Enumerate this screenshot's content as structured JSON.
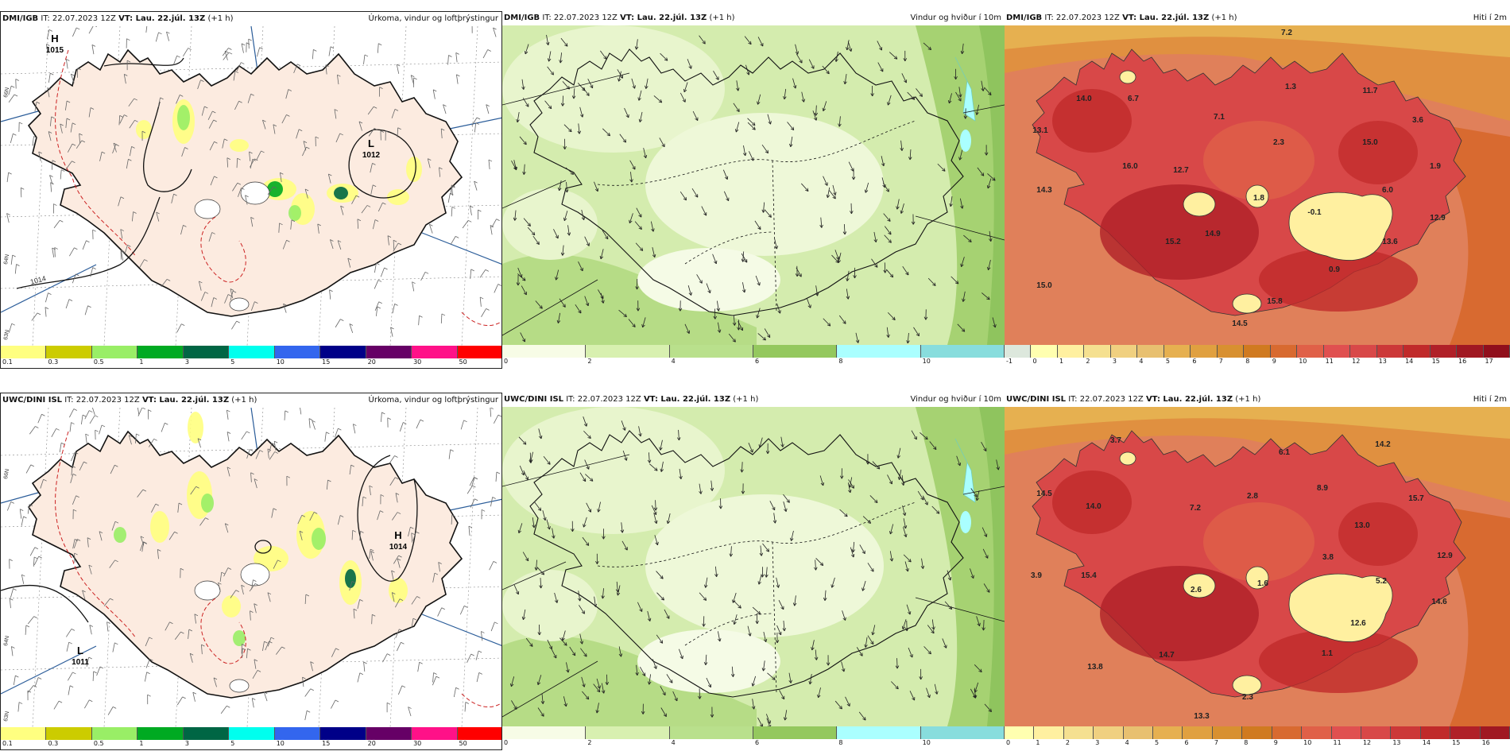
{
  "panels": [
    {
      "id": "p1",
      "model": "DMI/IGB",
      "it": "IT: 22.07.2023 12Z",
      "vt": "VT: Lau. 22.júl. 13Z",
      "lead": "(+1 h)",
      "subject": "Úrkoma, vindur og loftþrýstingur",
      "type": "precip",
      "pressure_centers": [
        {
          "letter": "H",
          "value": "1015"
        },
        {
          "letter": "L",
          "value": "1012"
        }
      ],
      "isobar_labels": [
        "1014"
      ],
      "lat_labels": [
        "66N",
        "64N",
        "63N"
      ],
      "colorbar": {
        "labels": [
          "0.1",
          "0.3",
          "0.5",
          "1",
          "3",
          "5",
          "10",
          "15",
          "20",
          "30",
          "50"
        ],
        "colors": [
          "#ffff80",
          "#cccc00",
          "#99ee66",
          "#00aa22",
          "#006644",
          "#00ffee",
          "#3366ee",
          "#000088",
          "#660066",
          "#ff1188",
          "#ff0000"
        ]
      }
    },
    {
      "id": "p2",
      "model": "DMI/IGB",
      "it": "IT: 22.07.2023 12Z",
      "vt": "VT: Lau. 22.júl. 13Z",
      "lead": "(+1 h)",
      "subject": "Vindur og hviður í 10m",
      "type": "wind",
      "colorbar": {
        "labels": [
          "0",
          "2",
          "4",
          "6",
          "8",
          "10"
        ],
        "colors": [
          "#f7fce6",
          "#d8f0b0",
          "#b9e08c",
          "#94c85e",
          "#aaffff",
          "#88dddd"
        ]
      }
    },
    {
      "id": "p3",
      "model": "DMI/IGB",
      "it": "IT: 22.07.2023 12Z",
      "vt": "VT: Lau. 22.júl. 13Z",
      "lead": "(+1 h)",
      "subject": "Hiti í 2m",
      "type": "temp",
      "temp_values": [
        "7.2",
        "14.0",
        "6.7",
        "1.3",
        "11.7",
        "13.1",
        "7.1",
        "15.0",
        "3.6",
        "2.3",
        "16.0",
        "12.7",
        "1.9",
        "14.3",
        "1.8",
        "6.0",
        "-0.1",
        "12.9",
        "14.9",
        "15.2",
        "13.6",
        "0.9",
        "15.0",
        "15.8",
        "14.5"
      ],
      "colorbar": {
        "labels": [
          "-1",
          "0",
          "1",
          "2",
          "3",
          "4",
          "5",
          "6",
          "7",
          "8",
          "9",
          "10",
          "11",
          "12",
          "13",
          "14",
          "15",
          "16",
          "17"
        ],
        "colors": [
          "#dde8dd",
          "#ffffb0",
          "#fff0a0",
          "#f5e090",
          "#f0d080",
          "#e8c070",
          "#e6b050",
          "#e0a040",
          "#d89030",
          "#d07a20",
          "#d86a30",
          "#e06048",
          "#e05050",
          "#d84848",
          "#cc3838",
          "#c02a2a",
          "#b02028",
          "#a01822",
          "#900f1c"
        ]
      }
    },
    {
      "id": "p4",
      "model": "UWC/DINI ISL",
      "it": "IT: 22.07.2023 12Z",
      "vt": "VT: Lau. 22.júl. 13Z",
      "lead": "(+1 h)",
      "subject": "Úrkoma, vindur og loftþrýstingur",
      "type": "precip",
      "pressure_centers": [
        {
          "letter": "L",
          "value": "1011"
        },
        {
          "letter": "H",
          "value": "1014"
        }
      ],
      "isobar_labels": [],
      "lat_labels": [
        "66N",
        "64N",
        "63N"
      ],
      "colorbar": {
        "labels": [
          "0.1",
          "0.3",
          "0.5",
          "1",
          "3",
          "5",
          "10",
          "15",
          "20",
          "30",
          "50"
        ],
        "colors": [
          "#ffff80",
          "#cccc00",
          "#99ee66",
          "#00aa22",
          "#006644",
          "#00ffee",
          "#3366ee",
          "#000088",
          "#660066",
          "#ff1188",
          "#ff0000"
        ]
      }
    },
    {
      "id": "p5",
      "model": "UWC/DINI ISL",
      "it": "IT: 22.07.2023 12Z",
      "vt": "VT: Lau. 22.júl. 13Z",
      "lead": "(+1 h)",
      "subject": "Vindur og hviður í 10m",
      "type": "wind",
      "colorbar": {
        "labels": [
          "0",
          "2",
          "4",
          "6",
          "8",
          "10"
        ],
        "colors": [
          "#f7fce6",
          "#d8f0b0",
          "#b9e08c",
          "#94c85e",
          "#aaffff",
          "#88dddd"
        ]
      }
    },
    {
      "id": "p6",
      "model": "UWC/DINI ISL",
      "it": "IT: 22.07.2023 12Z",
      "vt": "VT: Lau. 22.júl. 13Z",
      "lead": "(+1 h)",
      "subject": "Hiti í 2m",
      "type": "temp",
      "temp_values": [
        "3.7",
        "6.1",
        "14.2",
        "14.5",
        "14.0",
        "2.8",
        "8.9",
        "7.2",
        "15.7",
        "13.0",
        "12.9",
        "3.9",
        "15.4",
        "2.6",
        "1.6",
        "3.8",
        "5.2",
        "14.6",
        "12.6",
        "14.7",
        "1.1",
        "13.8",
        "2.3",
        "13.3"
      ],
      "colorbar": {
        "labels": [
          "0",
          "1",
          "2",
          "3",
          "4",
          "5",
          "6",
          "7",
          "8",
          "9",
          "10",
          "11",
          "12",
          "13",
          "14",
          "15",
          "16"
        ],
        "colors": [
          "#ffffb0",
          "#fff0a0",
          "#f5e090",
          "#f0d080",
          "#e8c070",
          "#e6b050",
          "#e0a040",
          "#d89030",
          "#d07a20",
          "#d86a30",
          "#e06048",
          "#e05050",
          "#d84848",
          "#cc3838",
          "#c02a2a",
          "#b02028",
          "#a01822"
        ]
      }
    }
  ]
}
